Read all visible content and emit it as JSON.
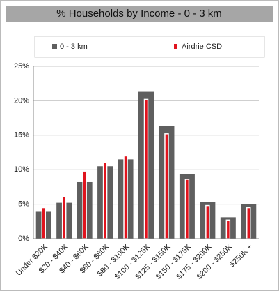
{
  "chart_data": {
    "type": "bar",
    "title": "% Households by Income - 0 - 3 km",
    "categories": [
      "Under $20K",
      "$20 - $40K",
      "$40 - $60K",
      "$60 - $80K",
      "$80 - $100K",
      "$100 - $125K",
      "$125 - $150K",
      "$150 - $175K",
      "$175 - $200K",
      "$200 - $250K",
      "$250K +"
    ],
    "series": [
      {
        "name": "0 - 3 km",
        "color": "#5f5f5f",
        "values": [
          3.9,
          5.2,
          8.2,
          10.5,
          11.5,
          21.3,
          16.3,
          9.4,
          5.3,
          3.1,
          5.0
        ]
      },
      {
        "name": "Airdrie CSD",
        "color": "#e0141e",
        "values": [
          4.5,
          6.1,
          9.8,
          11.1,
          12.0,
          20.2,
          15.2,
          8.6,
          4.8,
          2.7,
          4.5
        ]
      }
    ],
    "ylim": [
      0,
      25
    ],
    "yticks": [
      {
        "value": 0,
        "label": "0%"
      },
      {
        "value": 5,
        "label": "5%"
      },
      {
        "value": 10,
        "label": "10%"
      },
      {
        "value": 15,
        "label": "15%"
      },
      {
        "value": 20,
        "label": "20%"
      },
      {
        "value": 25,
        "label": "25%"
      }
    ],
    "grid": true
  }
}
